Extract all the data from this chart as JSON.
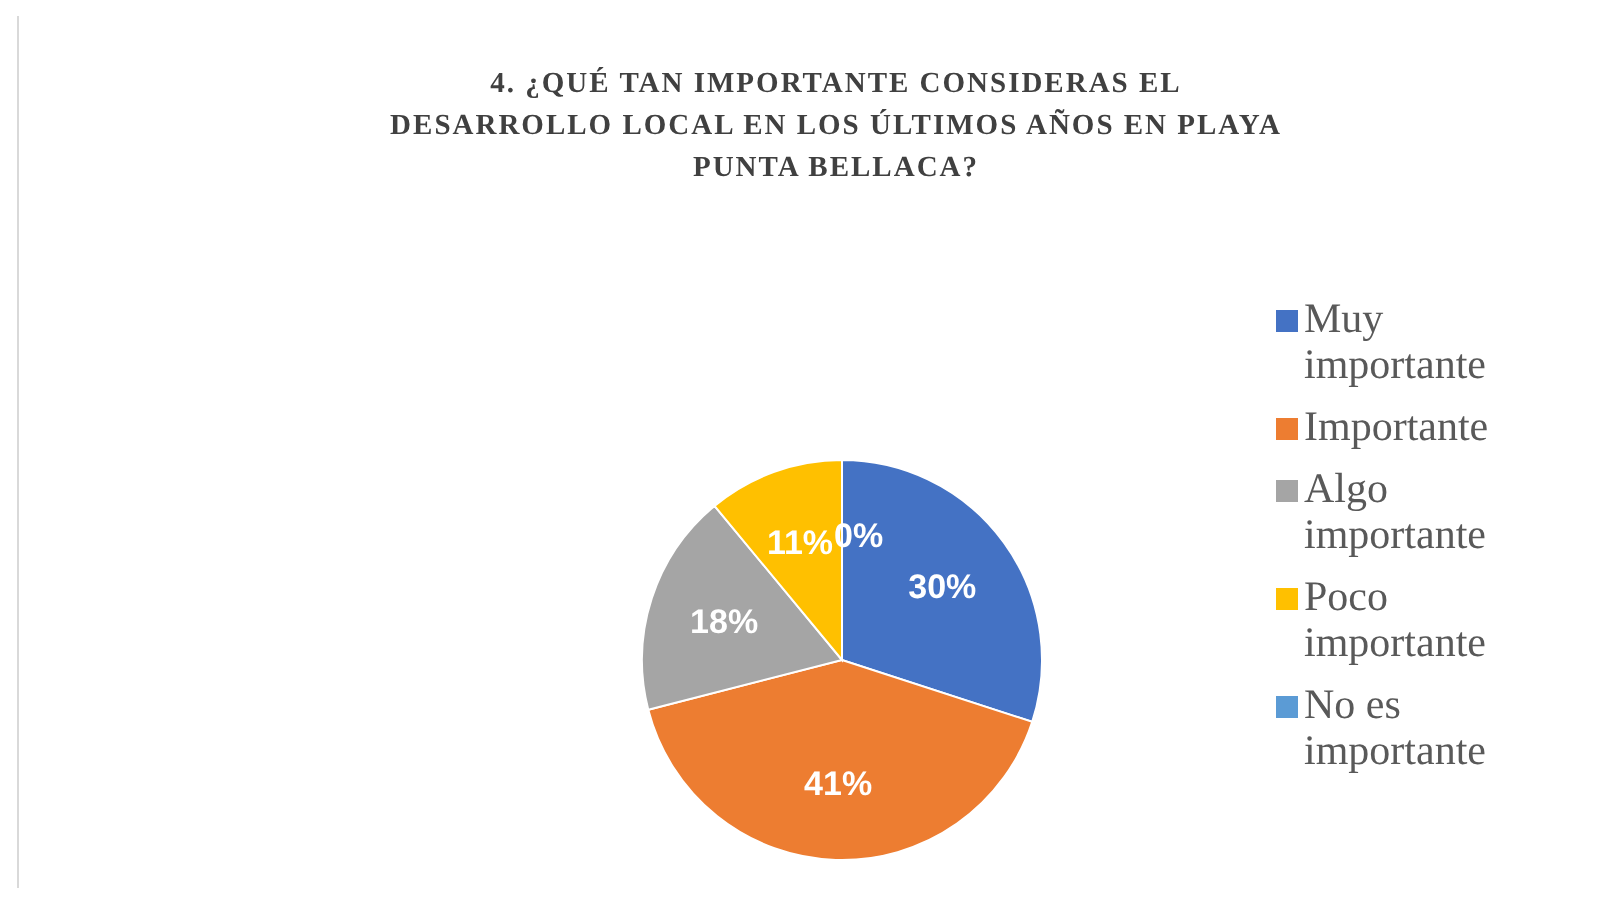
{
  "chart_data": {
    "type": "pie",
    "title": "4.  ¿QUÉ TAN IMPORTANTE CONSIDERAS EL DESARROLLO LOCAL EN LOS ÚLTIMOS AÑOS EN PLAYA PUNTA BELLACA?",
    "categories": [
      "Muy importante",
      "Importante",
      "Algo importante",
      "Poco importante",
      "No es importante"
    ],
    "values": [
      30,
      41,
      18,
      11,
      0
    ],
    "colors": [
      "#4472c4",
      "#ed7d31",
      "#a5a5a5",
      "#ffc000",
      "#5b9bd5"
    ],
    "value_labels": [
      "30%",
      "41%",
      "18%",
      "11%",
      "0%"
    ],
    "legend": "right"
  }
}
